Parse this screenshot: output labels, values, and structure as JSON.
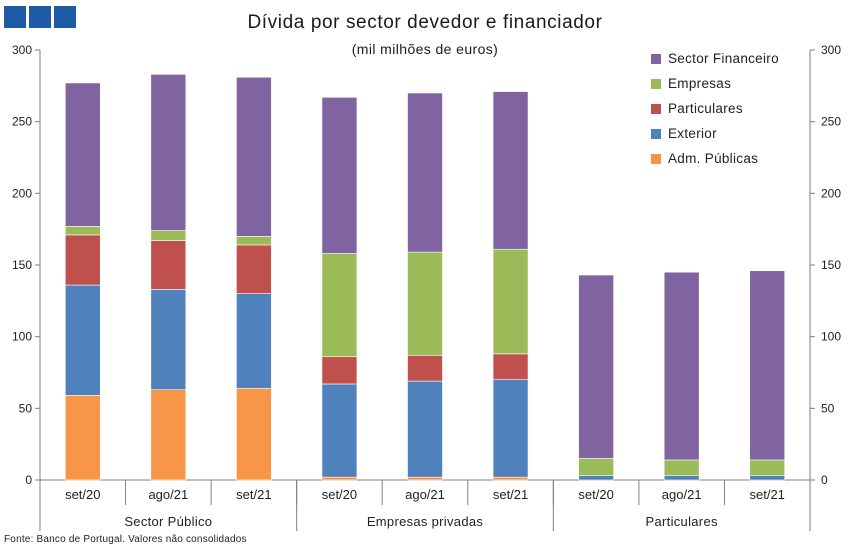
{
  "logo": {
    "blocks": 3,
    "color": "#1f5aa6"
  },
  "chart_data": {
    "type": "bar",
    "stacked": true,
    "title": "Dívida por sector devedor e financiador",
    "subtitle": "(mil milhões de euros)",
    "source": "Fonte: Banco de Portugal. Valores não consolidados",
    "ylim": [
      0,
      300
    ],
    "yticks": [
      "0",
      "50",
      "100",
      "150",
      "200",
      "250",
      "300"
    ],
    "secondary_axis": true,
    "grid": false,
    "legend_position": "top-right",
    "groups": [
      {
        "label": "Sector Público",
        "span": 3
      },
      {
        "label": "Empresas privadas",
        "span": 3
      },
      {
        "label": "Particulares",
        "span": 3
      }
    ],
    "categories": [
      "set/20",
      "ago/21",
      "set/21",
      "set/20",
      "ago/21",
      "set/21",
      "set/20",
      "ago/21",
      "set/21"
    ],
    "series": [
      {
        "name": "Adm. Públicas",
        "color": "#f79646",
        "values": [
          59,
          63,
          64,
          2,
          2,
          2,
          0,
          0,
          0
        ]
      },
      {
        "name": "Exterior",
        "color": "#4f81bd",
        "values": [
          77,
          70,
          66,
          65,
          67,
          68,
          3,
          3,
          3
        ]
      },
      {
        "name": "Particulares",
        "color": "#c0504d",
        "values": [
          35,
          34,
          34,
          19,
          18,
          18,
          0,
          0,
          0
        ]
      },
      {
        "name": "Empresas",
        "color": "#9bbb59",
        "values": [
          6,
          7,
          6,
          72,
          72,
          73,
          12,
          11,
          11
        ]
      },
      {
        "name": "Sector Financeiro",
        "color": "#8064a2",
        "values": [
          100,
          109,
          111,
          109,
          111,
          110,
          128,
          131,
          132
        ]
      }
    ],
    "legend_order": [
      "Sector Financeiro",
      "Empresas",
      "Particulares",
      "Exterior",
      "Adm. Públicas"
    ]
  }
}
